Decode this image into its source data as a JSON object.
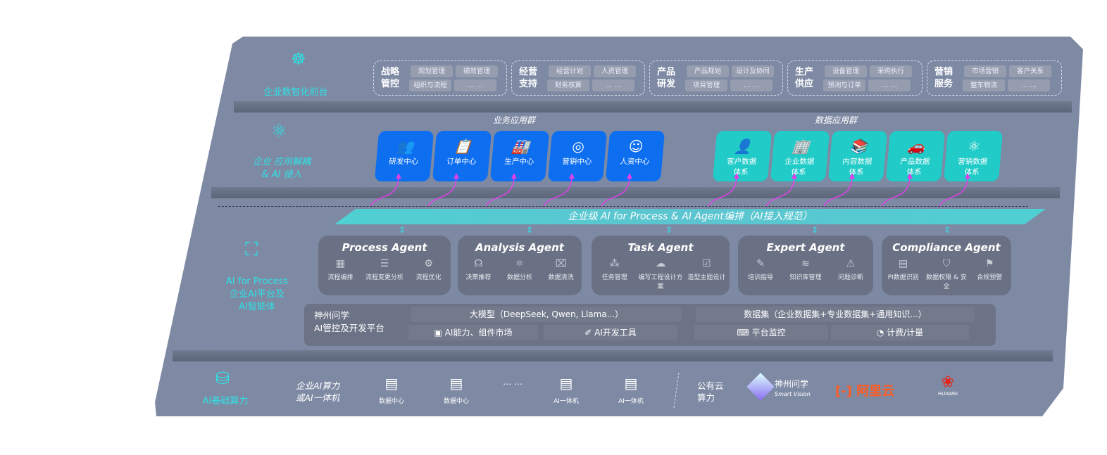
{
  "layers": {
    "front": "企业数智化前台",
    "apps": [
      "企业 应用解耦",
      "& AI 侵入"
    ],
    "ai": [
      "AI for Process",
      "企业AI平台及",
      "AI智能体"
    ],
    "infra": "AI基础算力"
  },
  "front_groups": [
    {
      "title": [
        "战略",
        "管控"
      ],
      "items": [
        "规划管理",
        "绩效管理",
        "组织与流程",
        "… …"
      ]
    },
    {
      "title": [
        "经营",
        "支持"
      ],
      "items": [
        "经营计划",
        "人资管理",
        "财务核算",
        "… …"
      ]
    },
    {
      "title": [
        "产品",
        "研发"
      ],
      "items": [
        "产品规划",
        "设计及协同",
        "项目管理",
        "… …"
      ]
    },
    {
      "title": [
        "生产",
        "供应"
      ],
      "items": [
        "设备管理",
        "采购执行",
        "预测与订单",
        "… …"
      ]
    },
    {
      "title": [
        "营销",
        "服务"
      ],
      "items": [
        "市场营销",
        "客户关系",
        "整车物流",
        "… …"
      ]
    }
  ],
  "business_apps": {
    "title": "业务应用群",
    "items": [
      "研发中心",
      "订单中心",
      "生产中心",
      "营销中心",
      "人资中心"
    ]
  },
  "data_apps": {
    "title": "数据应用群",
    "items": [
      [
        "客户数据",
        "体系"
      ],
      [
        "企业数据",
        "体系"
      ],
      [
        "内容数据",
        "体系"
      ],
      [
        "产品数据",
        "体系"
      ],
      [
        "营销数据",
        "体系"
      ]
    ]
  },
  "orchestration": "企业级 AI for Process & AI Agent编排（AI接入规范）",
  "agents": [
    {
      "name": "Process Agent",
      "items": [
        "流程编排",
        "流程变更分析",
        "流程优化"
      ]
    },
    {
      "name": "Analysis Agent",
      "items": [
        "决策推荐",
        "数据分析",
        "数据清洗"
      ]
    },
    {
      "name": "Task Agent",
      "items": [
        "任务管理",
        "编写工程设计方案",
        "造型主题设计"
      ]
    },
    {
      "name": "Expert Agent",
      "items": [
        "培训指导",
        "知识库管理",
        "问题诊断"
      ]
    },
    {
      "name": "Compliance Agent",
      "items": [
        "PI数据识别",
        "数据权限 & 安全",
        "合规预警"
      ]
    }
  ],
  "platform": {
    "name": [
      "神州问学",
      "AI管控及开发平台"
    ],
    "llm": "大模型（DeepSeek, Qwen, Llama...）",
    "dataset": "数据集（企业数据集+专业数据集+通用知识...）",
    "tools": [
      "AI能力、组件市场",
      "AI开发工具",
      "平台监控",
      "计费/计量"
    ]
  },
  "infra": {
    "enterprise": [
      "企业AI算力",
      "或AI一体机"
    ],
    "servers": [
      "数据中心",
      "数据中心",
      "… …",
      "AI一体机",
      "AI一体机"
    ],
    "public": [
      "公有云",
      "算力"
    ],
    "vendors": {
      "smartvision": [
        "神州问学",
        "Smart Vision"
      ],
      "aliyun": "阿里云",
      "huawei": "HUAWEI"
    }
  },
  "colors": {
    "panel": "#7e8aa4",
    "accent": "#2fe0e4",
    "business": "#0d6ef0",
    "data": "#20cbc8",
    "connector": "#e040e8",
    "aliyun": "#ff5a1f",
    "huawei": "#e4261c"
  }
}
